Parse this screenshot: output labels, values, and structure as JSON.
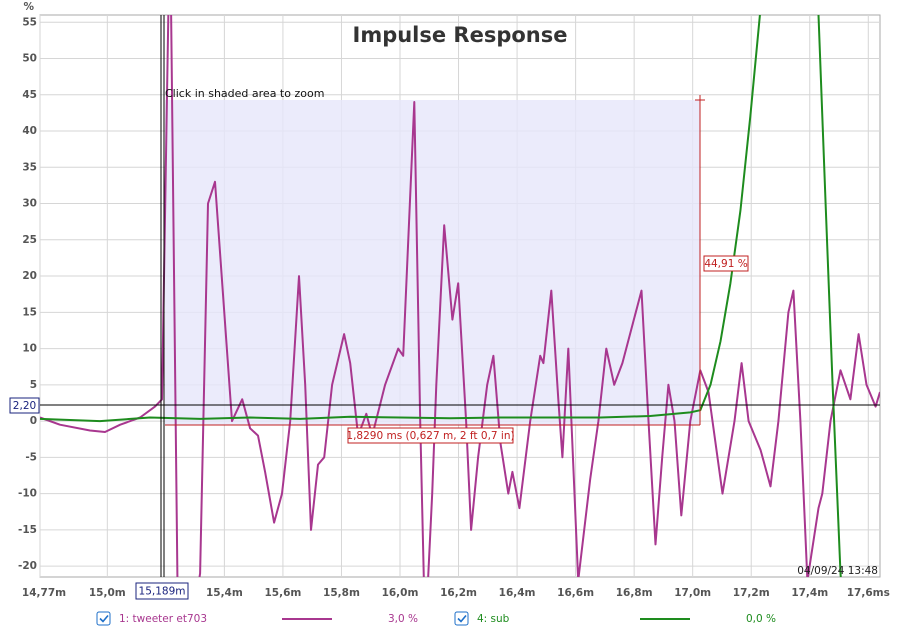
{
  "chart_data": {
    "type": "line",
    "title": "Impulse Response",
    "y_unit": "%",
    "xlim": [
      14.77,
      17.64
    ],
    "ylim": [
      -21.5,
      56
    ],
    "yticks": [
      55,
      50,
      45,
      40,
      35,
      30,
      25,
      20,
      15,
      10,
      5,
      0,
      -5,
      -10,
      -15,
      -20
    ],
    "xticks": [
      {
        "value": 14.77,
        "label": "14,77m"
      },
      {
        "value": 15.0,
        "label": "15,0m"
      },
      {
        "value": 15.4,
        "label": "15,4m"
      },
      {
        "value": 15.6,
        "label": "15,6m"
      },
      {
        "value": 15.8,
        "label": "15,8m"
      },
      {
        "value": 16.0,
        "label": "16,0m"
      },
      {
        "value": 16.2,
        "label": "16,2m"
      },
      {
        "value": 16.4,
        "label": "16,4m"
      },
      {
        "value": 16.6,
        "label": "16,6m"
      },
      {
        "value": 16.8,
        "label": "16,8m"
      },
      {
        "value": 17.0,
        "label": "17,0m"
      },
      {
        "value": 17.2,
        "label": "17,2m"
      },
      {
        "value": 17.4,
        "label": "17,4m"
      },
      {
        "value": 17.6,
        "label": "17,6ms"
      }
    ],
    "grid": true,
    "annotations": {
      "zoom_hint": "Click in shaded area to zoom",
      "cursor_y": "2,20",
      "cursor_x": "15,189m",
      "selection_height": "44,91 %",
      "selection_width": "1,8290 ms (0,627 m, 2 ft 0,7 in)",
      "timestamp": "04/09/24 13:48"
    },
    "series": [
      {
        "name": "1: tweeter et703",
        "level": "3,0 %",
        "color": "#a8378f",
        "x": [
          14.77,
          14.838,
          14.941,
          14.992,
          15.044,
          15.112,
          15.163,
          15.187,
          15.214,
          15.242,
          15.283,
          15.317,
          15.344,
          15.368,
          15.426,
          15.461,
          15.488,
          15.515,
          15.539,
          15.57,
          15.597,
          15.625,
          15.655,
          15.676,
          15.696,
          15.72,
          15.741,
          15.768,
          15.809,
          15.83,
          15.857,
          15.885,
          15.905,
          15.949,
          15.994,
          16.011,
          16.049,
          16.069,
          16.086,
          16.11,
          16.124,
          16.151,
          16.179,
          16.199,
          16.226,
          16.243,
          16.267,
          16.298,
          16.319,
          16.343,
          16.37,
          16.384,
          16.408,
          16.445,
          16.479,
          16.49,
          16.517,
          16.541,
          16.555,
          16.575,
          16.609,
          16.65,
          16.678,
          16.705,
          16.732,
          16.76,
          16.825,
          16.849,
          16.873,
          16.896,
          16.917,
          16.938,
          16.961,
          16.992,
          17.026,
          17.054,
          17.102,
          17.143,
          17.167,
          17.191,
          17.232,
          17.266,
          17.293,
          17.327,
          17.344,
          17.368,
          17.392,
          17.43,
          17.443,
          17.471,
          17.505,
          17.539,
          17.567,
          17.594,
          17.625,
          17.64
        ],
        "values": [
          0.5,
          -0.5,
          -1.3,
          -1.5,
          -0.5,
          0.5,
          2,
          3,
          70,
          -30,
          -30,
          -21,
          30,
          33,
          0,
          3,
          -1,
          -2,
          -7,
          -14,
          -10,
          0,
          20,
          5,
          -15,
          -6,
          -5,
          5,
          12,
          8,
          -2,
          1,
          -2,
          5,
          10,
          9,
          44,
          0,
          -30,
          -10,
          5,
          27,
          14,
          19,
          0,
          -15,
          -5,
          5,
          9,
          -3,
          -10,
          -7,
          -12,
          0,
          9,
          8,
          18,
          3,
          -5,
          10,
          -22,
          -8,
          0,
          10,
          5,
          8,
          18,
          0,
          -17,
          -5,
          5,
          0,
          -13,
          0,
          7,
          4,
          -10,
          0,
          8,
          0,
          -4,
          -9,
          0,
          15,
          18,
          0,
          -22,
          -12,
          -10,
          0,
          7,
          3,
          12,
          5,
          2,
          4
        ]
      },
      {
        "name": "4: sub",
        "level": "0,0 %",
        "color": "#1e8c1e",
        "x": [
          14.77,
          14.975,
          15.146,
          15.317,
          15.488,
          15.659,
          15.83,
          16.001,
          16.172,
          16.343,
          16.514,
          16.685,
          16.855,
          16.992,
          17.026,
          17.061,
          17.095,
          17.129,
          17.163,
          17.197,
          17.232,
          17.334,
          17.43,
          17.454,
          17.478,
          17.505,
          17.522
        ],
        "values": [
          0.3,
          0,
          0.5,
          0.3,
          0.5,
          0.3,
          0.6,
          0.5,
          0.4,
          0.5,
          0.5,
          0.5,
          0.7,
          1.2,
          1.5,
          5,
          11,
          19,
          29,
          42,
          57,
          80,
          56,
          30,
          5,
          -21,
          -30
        ]
      }
    ]
  }
}
